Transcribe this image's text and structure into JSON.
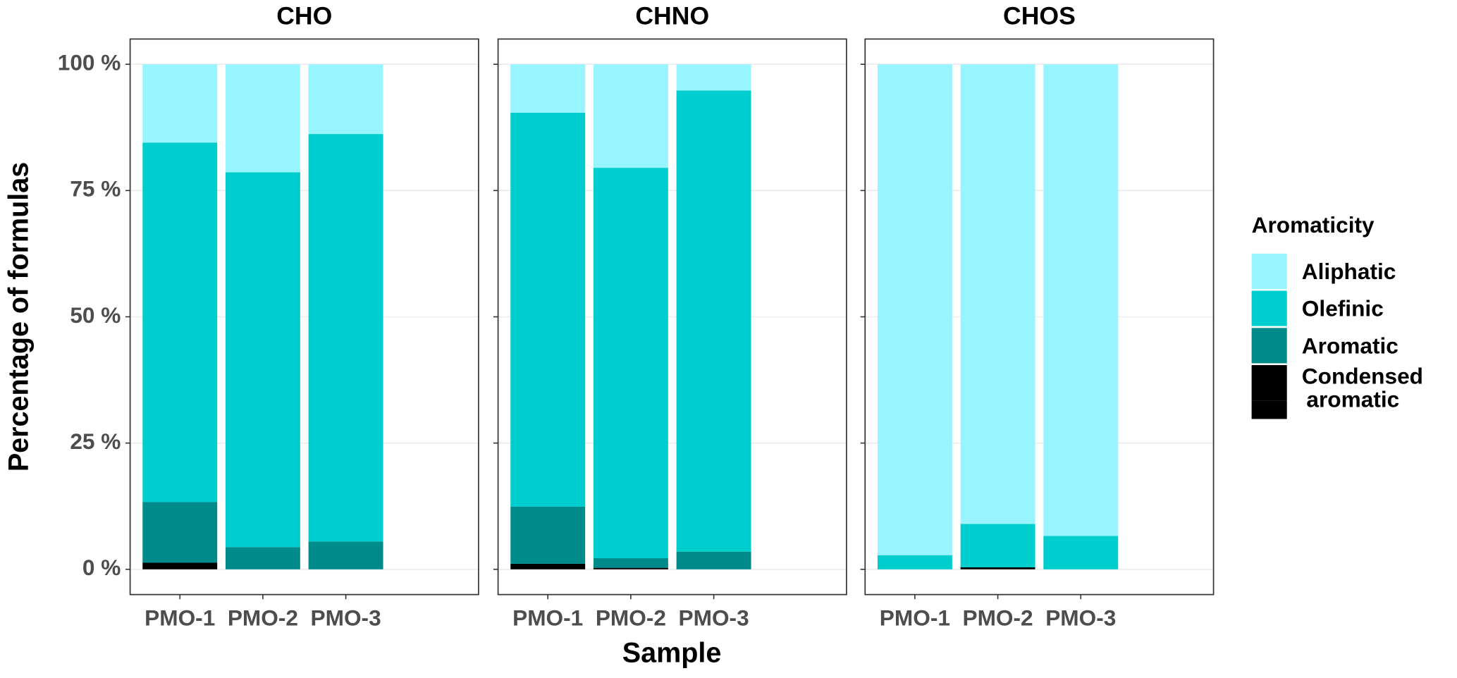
{
  "chart_data": {
    "type": "bar",
    "stacked": true,
    "y_label": "Percentage of formulas",
    "x_label": "Sample",
    "legend_title": "Aromaticity",
    "ylim": [
      -5,
      105
    ],
    "yticks": [
      {
        "value": 0,
        "label": "0 %"
      },
      {
        "value": 25,
        "label": "25 %"
      },
      {
        "value": 50,
        "label": "50 %"
      },
      {
        "value": 75,
        "label": "75 %"
      },
      {
        "value": 100,
        "label": "100 %"
      }
    ],
    "grid": true,
    "categories": [
      "PMO-1",
      "PMO-2",
      "PMO-3"
    ],
    "series": [
      {
        "name": "Condensed aromatic",
        "color": "#000000"
      },
      {
        "name": "Aromatic",
        "color": "#008B8B"
      },
      {
        "name": "Olefinic",
        "color": "#00CDCD"
      },
      {
        "name": "Aliphatic",
        "color": "#98F5FF"
      }
    ],
    "panels": [
      {
        "title": "CHO",
        "values": [
          [
            1.3,
            0,
            0
          ],
          [
            12.0,
            4.4,
            5.5
          ],
          [
            71.2,
            74.2,
            80.7
          ],
          [
            15.5,
            21.4,
            13.8
          ]
        ]
      },
      {
        "title": "CHNO",
        "values": [
          [
            1.1,
            0.3,
            0
          ],
          [
            11.3,
            1.9,
            3.5
          ],
          [
            78.0,
            77.3,
            91.3
          ],
          [
            9.6,
            20.5,
            5.2
          ]
        ]
      },
      {
        "title": "CHOS",
        "values": [
          [
            0,
            0.4,
            0
          ],
          [
            0,
            0,
            0
          ],
          [
            2.8,
            8.6,
            6.6
          ],
          [
            97.2,
            91.0,
            93.4
          ]
        ]
      }
    ]
  }
}
